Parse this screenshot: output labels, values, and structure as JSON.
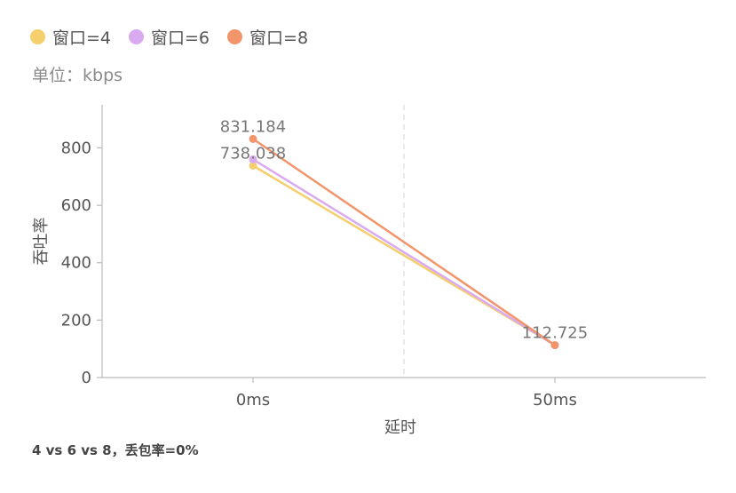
{
  "legend": [
    {
      "label": "窗口=4",
      "color": "#F5CF6E"
    },
    {
      "label": "窗口=6",
      "color": "#D9AAF0"
    },
    {
      "label": "窗口=8",
      "color": "#F2956B"
    }
  ],
  "unit_text": "单位：kbps",
  "caption": "4 vs 6 vs 8，丢包率=0%",
  "chart_data": {
    "type": "line",
    "categories": [
      "0ms",
      "50ms"
    ],
    "series": [
      {
        "name": "窗口=4",
        "color": "#F5CF6E",
        "values": [
          738.038,
          112.725
        ]
      },
      {
        "name": "窗口=6",
        "color": "#D9AAF0",
        "values": [
          760,
          112.725
        ]
      },
      {
        "name": "窗口=8",
        "color": "#F2956B",
        "values": [
          831.184,
          112.725
        ]
      }
    ],
    "data_labels": [
      {
        "series": 2,
        "index": 0,
        "text": "831.184"
      },
      {
        "series": 0,
        "index": 0,
        "text": "738.038"
      },
      {
        "series": 2,
        "index": 1,
        "text": "112.725"
      }
    ],
    "yticks": [
      0,
      200,
      400,
      600,
      800
    ],
    "ylim": [
      0,
      950
    ],
    "xlabel": "延时",
    "ylabel": "吞吐率",
    "grid": false,
    "legend_position": "top-left"
  }
}
